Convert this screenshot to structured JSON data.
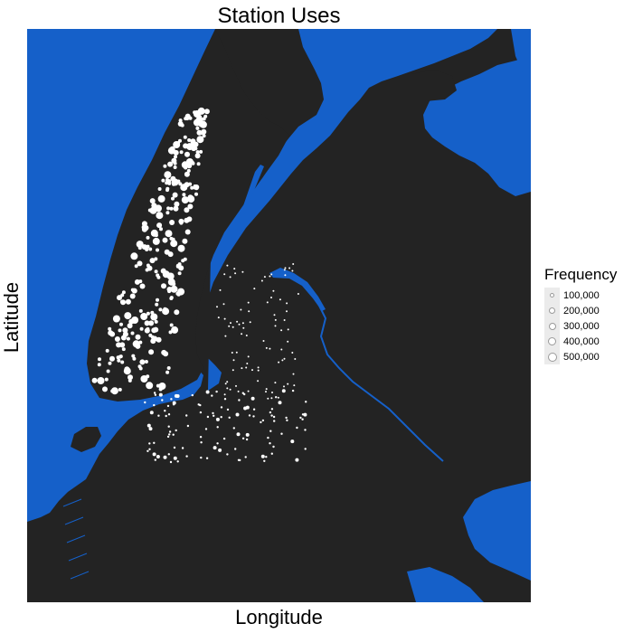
{
  "title": "Station Uses",
  "xlabel": "Longitude",
  "ylabel": "Latitude",
  "legend": {
    "title": "Frequency",
    "items": [
      {
        "label": "100,000",
        "value": 100000
      },
      {
        "label": "200,000",
        "value": 200000
      },
      {
        "label": "300,000",
        "value": 300000
      },
      {
        "label": "400,000",
        "value": 400000
      },
      {
        "label": "500,000",
        "value": 500000
      }
    ]
  },
  "colors": {
    "water": "#1560c9",
    "land": "#232323",
    "station": "#ffffff",
    "legend_key_bg": "#ebebeb"
  },
  "map": {
    "type": "bubble-map",
    "marker": "station-circle",
    "size_variable": "Frequency"
  }
}
